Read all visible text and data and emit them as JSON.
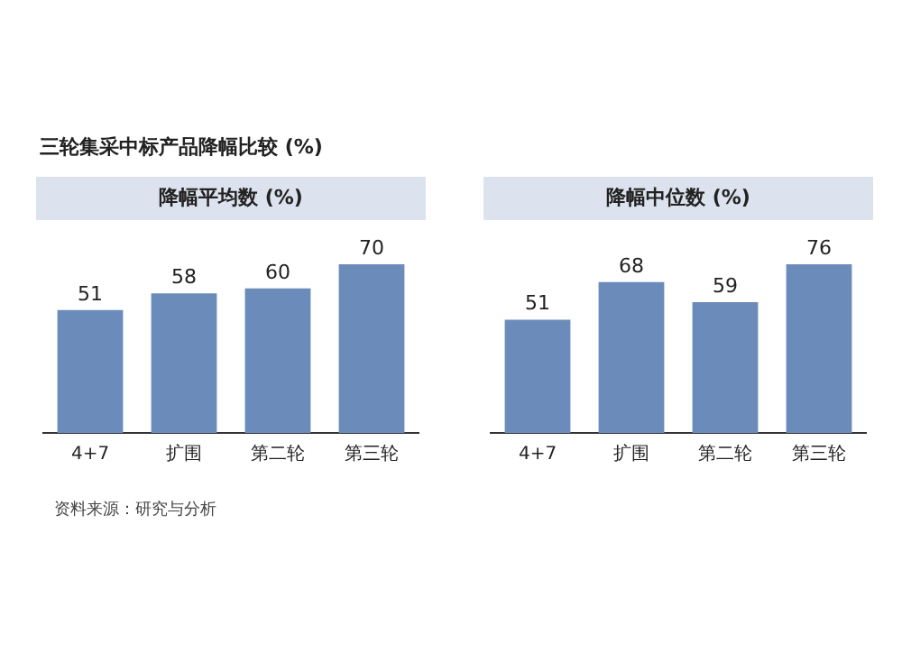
{
  "chart_data": [
    {
      "type": "bar",
      "title": "降幅平均数 (%)",
      "categories": [
        "4+7",
        "扩围",
        "第二轮",
        "第三轮"
      ],
      "values": [
        51,
        58,
        60,
        70
      ],
      "color": "#6b8cba",
      "data_labels": true,
      "grid": false,
      "legend": false,
      "tick_labels": "x",
      "annotations": [
        "三轮集采中标产品降幅比较 (%)",
        "资料来源：研究与分析"
      ]
    },
    {
      "type": "bar",
      "title": "降幅中位数 (%)",
      "categories": [
        "4+7",
        "扩围",
        "第二轮",
        "第三轮"
      ],
      "values": [
        51,
        68,
        59,
        76
      ],
      "color": "#6b8cba",
      "data_labels": true,
      "grid": false,
      "legend": false,
      "tick_labels": "x"
    }
  ]
}
